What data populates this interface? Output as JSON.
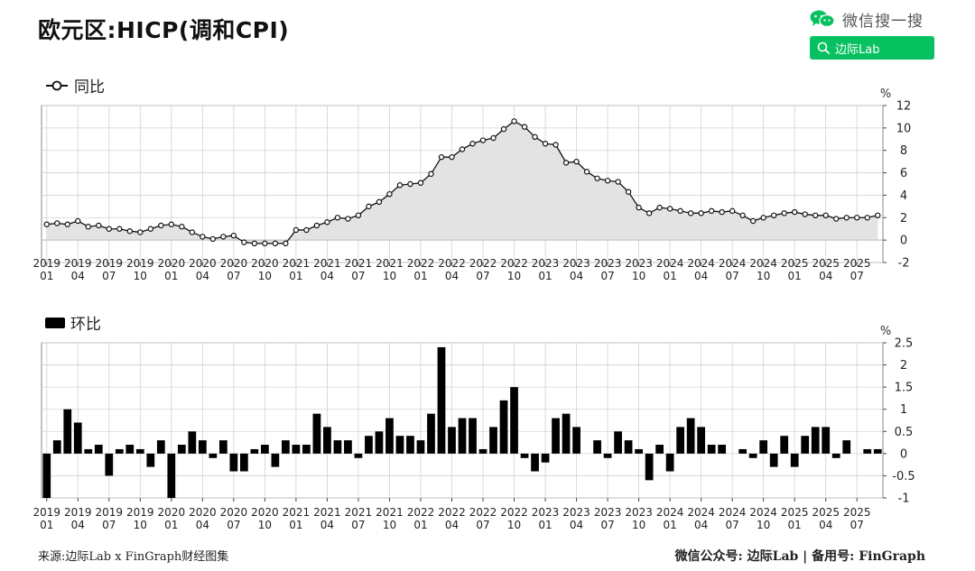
{
  "header": {
    "title": "欧元区:HICP(调和CPI)",
    "wechat_search_text": "微信搜一搜",
    "search_button_label": "边际Lab"
  },
  "footer": {
    "source": "来源:边际Lab x FinGraph财经图集",
    "account": "微信公众号: 边际Lab  |  备用号: FinGraph"
  },
  "colors": {
    "wechat_green": "#07c160",
    "line": "#111111",
    "area_fill": "#e3e3e3",
    "bar": "#000000",
    "grid": "#d2d2d2"
  },
  "chart_data": [
    {
      "type": "area",
      "title": "",
      "series": [
        {
          "name": "同比",
          "values": [
            1.4,
            1.5,
            1.4,
            1.7,
            1.2,
            1.3,
            1.0,
            1.0,
            0.8,
            0.7,
            1.0,
            1.3,
            1.4,
            1.2,
            0.7,
            0.3,
            0.1,
            0.3,
            0.4,
            -0.2,
            -0.3,
            -0.3,
            -0.3,
            -0.3,
            0.9,
            0.9,
            1.3,
            1.6,
            2.0,
            1.9,
            2.2,
            3.0,
            3.4,
            4.1,
            4.9,
            5.0,
            5.1,
            5.9,
            7.4,
            7.4,
            8.1,
            8.6,
            8.9,
            9.1,
            9.9,
            10.6,
            10.1,
            9.2,
            8.6,
            8.5,
            6.9,
            7.0,
            6.1,
            5.5,
            5.3,
            5.2,
            4.3,
            2.9,
            2.4,
            2.9,
            2.8,
            2.6,
            2.4,
            2.4,
            2.6,
            2.5,
            2.6,
            2.2,
            1.7,
            2.0,
            2.2,
            2.4,
            2.5,
            2.3,
            2.2,
            2.2,
            1.9,
            2.0,
            2.0,
            2.0,
            2.2
          ]
        }
      ],
      "ylabel": "%",
      "ylim": [
        -2,
        12
      ],
      "yticks": [
        "12",
        "10",
        "8",
        "6",
        "4",
        "2",
        "0",
        "-2"
      ],
      "x_tick_labels": [
        [
          "2019",
          "01"
        ],
        [
          "2019",
          "04"
        ],
        [
          "2019",
          "07"
        ],
        [
          "2019",
          "10"
        ],
        [
          "2020",
          "01"
        ],
        [
          "2020",
          "04"
        ],
        [
          "2020",
          "07"
        ],
        [
          "2020",
          "10"
        ],
        [
          "2021",
          "01"
        ],
        [
          "2021",
          "04"
        ],
        [
          "2021",
          "07"
        ],
        [
          "2021",
          "10"
        ],
        [
          "2022",
          "01"
        ],
        [
          "2022",
          "04"
        ],
        [
          "2022",
          "07"
        ],
        [
          "2022",
          "10"
        ],
        [
          "2023",
          "01"
        ],
        [
          "2023",
          "04"
        ],
        [
          "2023",
          "07"
        ],
        [
          "2023",
          "10"
        ],
        [
          "2024",
          "01"
        ],
        [
          "2024",
          "04"
        ],
        [
          "2024",
          "07"
        ],
        [
          "2024",
          "10"
        ],
        [
          "2025",
          "01"
        ],
        [
          "2025",
          "04"
        ],
        [
          "2025",
          "07"
        ]
      ],
      "grid": true,
      "legend": "top-left"
    },
    {
      "type": "bar",
      "title": "",
      "series": [
        {
          "name": "环比",
          "values": [
            -1.0,
            0.3,
            1.0,
            0.7,
            0.1,
            0.2,
            -0.5,
            0.1,
            0.2,
            0.1,
            -0.3,
            0.3,
            -1.0,
            0.2,
            0.5,
            0.3,
            -0.1,
            0.3,
            -0.4,
            -0.4,
            0.1,
            0.2,
            -0.3,
            0.3,
            0.2,
            0.2,
            0.9,
            0.6,
            0.3,
            0.3,
            -0.1,
            0.4,
            0.5,
            0.8,
            0.4,
            0.4,
            0.3,
            0.9,
            2.4,
            0.6,
            0.8,
            0.8,
            0.1,
            0.6,
            1.2,
            1.5,
            -0.1,
            -0.4,
            -0.2,
            0.8,
            0.9,
            0.6,
            0.0,
            0.3,
            -0.1,
            0.5,
            0.3,
            0.1,
            -0.6,
            0.2,
            -0.4,
            0.6,
            0.8,
            0.6,
            0.2,
            0.2,
            0.0,
            0.1,
            -0.1,
            0.3,
            -0.3,
            0.4,
            -0.3,
            0.4,
            0.6,
            0.6,
            -0.1,
            0.3,
            0.0,
            0.1,
            0.1
          ]
        }
      ],
      "ylabel": "%",
      "ylim": [
        -1,
        2.5
      ],
      "yticks": [
        "2.5",
        "2",
        "1.5",
        "1",
        "0.5",
        "0",
        "-0.5",
        "-1"
      ],
      "x_tick_labels": [
        [
          "2019",
          "01"
        ],
        [
          "2019",
          "04"
        ],
        [
          "2019",
          "07"
        ],
        [
          "2019",
          "10"
        ],
        [
          "2020",
          "01"
        ],
        [
          "2020",
          "04"
        ],
        [
          "2020",
          "07"
        ],
        [
          "2020",
          "10"
        ],
        [
          "2021",
          "01"
        ],
        [
          "2021",
          "04"
        ],
        [
          "2021",
          "07"
        ],
        [
          "2021",
          "10"
        ],
        [
          "2022",
          "01"
        ],
        [
          "2022",
          "04"
        ],
        [
          "2022",
          "07"
        ],
        [
          "2022",
          "10"
        ],
        [
          "2023",
          "01"
        ],
        [
          "2023",
          "04"
        ],
        [
          "2023",
          "07"
        ],
        [
          "2023",
          "10"
        ],
        [
          "2024",
          "01"
        ],
        [
          "2024",
          "04"
        ],
        [
          "2024",
          "07"
        ],
        [
          "2024",
          "10"
        ],
        [
          "2025",
          "01"
        ],
        [
          "2025",
          "04"
        ],
        [
          "2025",
          "07"
        ]
      ],
      "grid": true,
      "legend": "top-left"
    }
  ]
}
